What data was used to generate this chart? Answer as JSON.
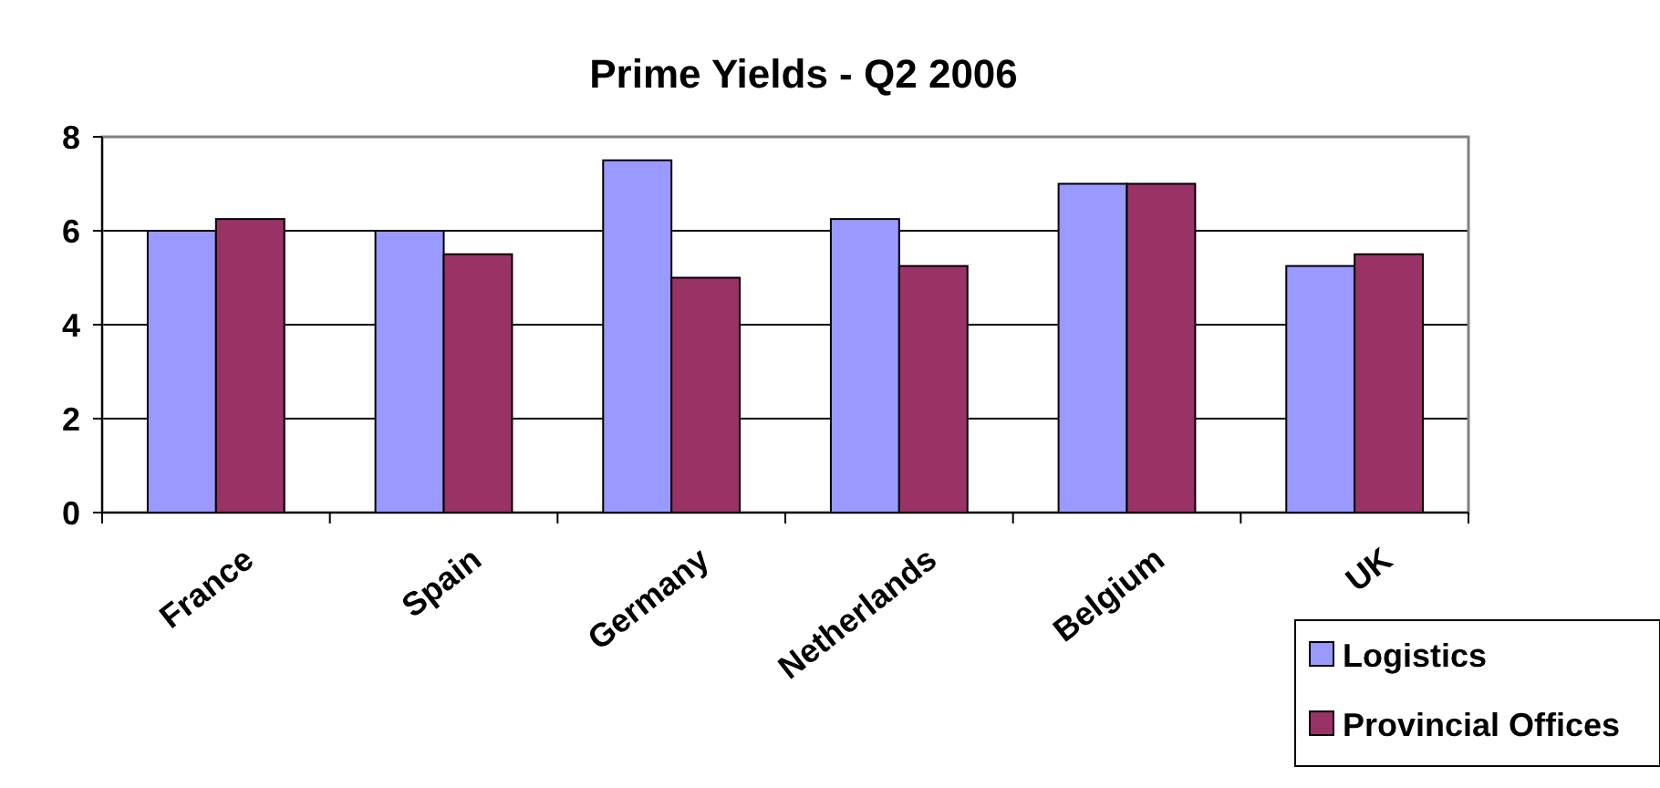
{
  "chart_data": {
    "type": "bar",
    "title": "Prime Yields - Q2 2006",
    "categories": [
      "France",
      "Spain",
      "Germany",
      "Netherlands",
      "Belgium",
      "UK"
    ],
    "series": [
      {
        "name": "Logistics",
        "color": "#9999ff",
        "values": [
          6,
          6,
          7.5,
          6.25,
          7,
          5.25
        ]
      },
      {
        "name": "Provincial Offices",
        "color": "#993366",
        "values": [
          6.25,
          5.5,
          5,
          5.25,
          7,
          5.5
        ]
      }
    ],
    "ylim": [
      0,
      8
    ],
    "yticks": [
      0,
      2,
      4,
      6,
      8
    ],
    "grid": "y",
    "legend": "bottom right"
  }
}
